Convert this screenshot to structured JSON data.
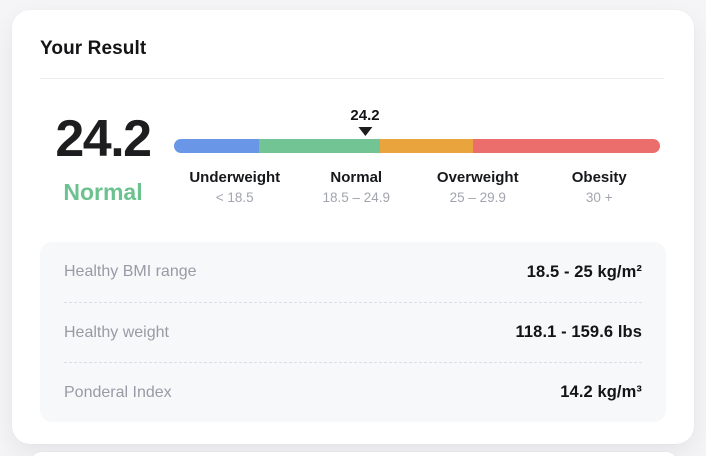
{
  "card": {
    "title": "Your Result",
    "result": {
      "value": "24.2",
      "category": "Normal",
      "category_color": "#6cc28e"
    },
    "scale": {
      "marker": {
        "label": "24.2",
        "position_pct": 39.3,
        "arrow_color": "#1c1c1e"
      },
      "segments": [
        {
          "name": "Underweight",
          "range": "< 18.5",
          "color": "#6a96e8",
          "width_pct": 17.5
        },
        {
          "name": "Normal",
          "range": "18.5 – 24.9",
          "color": "#72c494",
          "width_pct": 24.9
        },
        {
          "name": "Overweight",
          "range": "25 – 29.9",
          "color": "#eaa43e",
          "width_pct": 19.1
        },
        {
          "name": "Obesity",
          "range": "30 +",
          "color": "#ec6e6c",
          "width_pct": 38.5
        }
      ]
    },
    "stats": [
      {
        "label": "Healthy BMI range",
        "value": "18.5 - 25 kg/m²"
      },
      {
        "label": "Healthy weight",
        "value": "118.1 - 159.6 lbs"
      },
      {
        "label": "Ponderal Index",
        "value": "14.2 kg/m³"
      }
    ]
  }
}
